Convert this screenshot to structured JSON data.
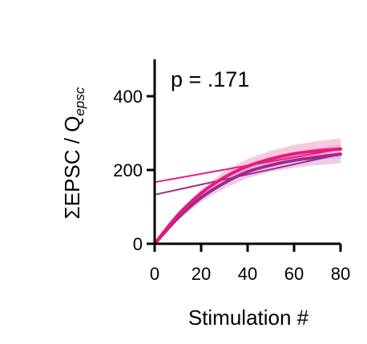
{
  "chart_data": {
    "type": "line",
    "title": "",
    "annotation": "p = .171",
    "xlabel": "Stimulation #",
    "ylabel_main": "ΣEPSC / Q",
    "ylabel_sub": "epsc",
    "xlim": [
      0,
      80
    ],
    "ylim": [
      0,
      500
    ],
    "xticks": [
      0,
      20,
      40,
      60,
      80
    ],
    "yticks": [
      0,
      200,
      400
    ],
    "grid": false,
    "legend": "none",
    "series": [
      {
        "color": "#e8197d",
        "band_color": "#f29ac3",
        "x": [
          0,
          10,
          20,
          30,
          40,
          50,
          60,
          70,
          80
        ],
        "y": [
          0,
          78,
          137,
          180,
          210,
          230,
          244,
          252,
          257
        ],
        "upper": [
          0,
          85,
          148,
          196,
          230,
          252,
          268,
          278,
          286
        ],
        "lower": [
          0,
          71,
          126,
          166,
          192,
          210,
          222,
          229,
          232
        ],
        "fit": {
          "x": [
            0,
            80
          ],
          "y": [
            167,
            257
          ]
        }
      },
      {
        "color": "#9c2a8e",
        "band_color": "#d8a6d6",
        "x": [
          0,
          10,
          20,
          30,
          40,
          50,
          60,
          70,
          80
        ],
        "y": [
          0,
          70,
          125,
          165,
          195,
          213,
          226,
          235,
          243
        ],
        "upper": [
          0,
          76,
          135,
          178,
          210,
          232,
          248,
          260,
          270
        ],
        "lower": [
          0,
          63,
          113,
          150,
          178,
          195,
          206,
          213,
          218
        ],
        "fit": {
          "x": [
            0,
            80
          ],
          "y": [
            133,
            243
          ]
        }
      }
    ]
  }
}
